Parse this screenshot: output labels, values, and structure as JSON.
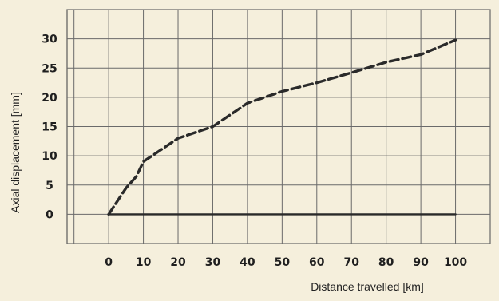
{
  "chart_data": {
    "type": "line",
    "title": "",
    "xlabel": "Distance travelled [km]",
    "ylabel": "Axial displacement [mm]",
    "x_ticks": [
      0,
      10,
      20,
      30,
      40,
      50,
      60,
      70,
      80,
      90,
      100
    ],
    "y_ticks": [
      0,
      5,
      10,
      15,
      20,
      25,
      30
    ],
    "xlim": [
      -12,
      110
    ],
    "ylim": [
      -5,
      35
    ],
    "grid": true,
    "series": [
      {
        "style": "dashed",
        "color": "#2a2a2a",
        "x": [
          0,
          5,
          8,
          10,
          20,
          30,
          40,
          50,
          60,
          70,
          80,
          90,
          100
        ],
        "y": [
          0,
          4.5,
          6.5,
          9,
          13,
          15,
          19,
          21,
          22.5,
          24.2,
          26,
          27.3,
          29.8
        ]
      },
      {
        "style": "solid",
        "color": "#2a2a2a",
        "x": [
          0,
          100
        ],
        "y": [
          0,
          0
        ]
      }
    ]
  }
}
